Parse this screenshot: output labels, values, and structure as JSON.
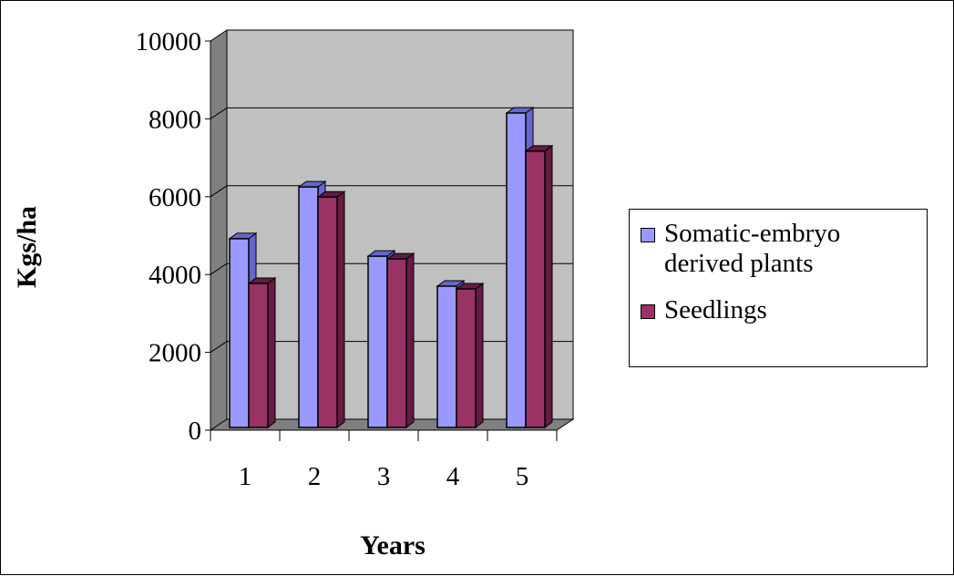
{
  "chart_data": {
    "type": "bar",
    "title": "",
    "xlabel": "Years",
    "ylabel": "Kgs/ha",
    "categories": [
      "1",
      "2",
      "3",
      "4",
      "5"
    ],
    "ylim": [
      0,
      10000
    ],
    "yticks": [
      "0",
      "2000",
      "4000",
      "6000",
      "8000",
      "10000"
    ],
    "grid": true,
    "legend_position": "right",
    "series": [
      {
        "name": "Somatic-embryo derived plants",
        "name_line1": "Somatic-embryo",
        "name_line2": "derived plants",
        "color": "#9999ff",
        "values": [
          4850,
          6180,
          4400,
          3630,
          8080
        ]
      },
      {
        "name": "Seedlings",
        "color": "#993366",
        "values": [
          3700,
          5920,
          4330,
          3560,
          7100
        ]
      }
    ]
  }
}
